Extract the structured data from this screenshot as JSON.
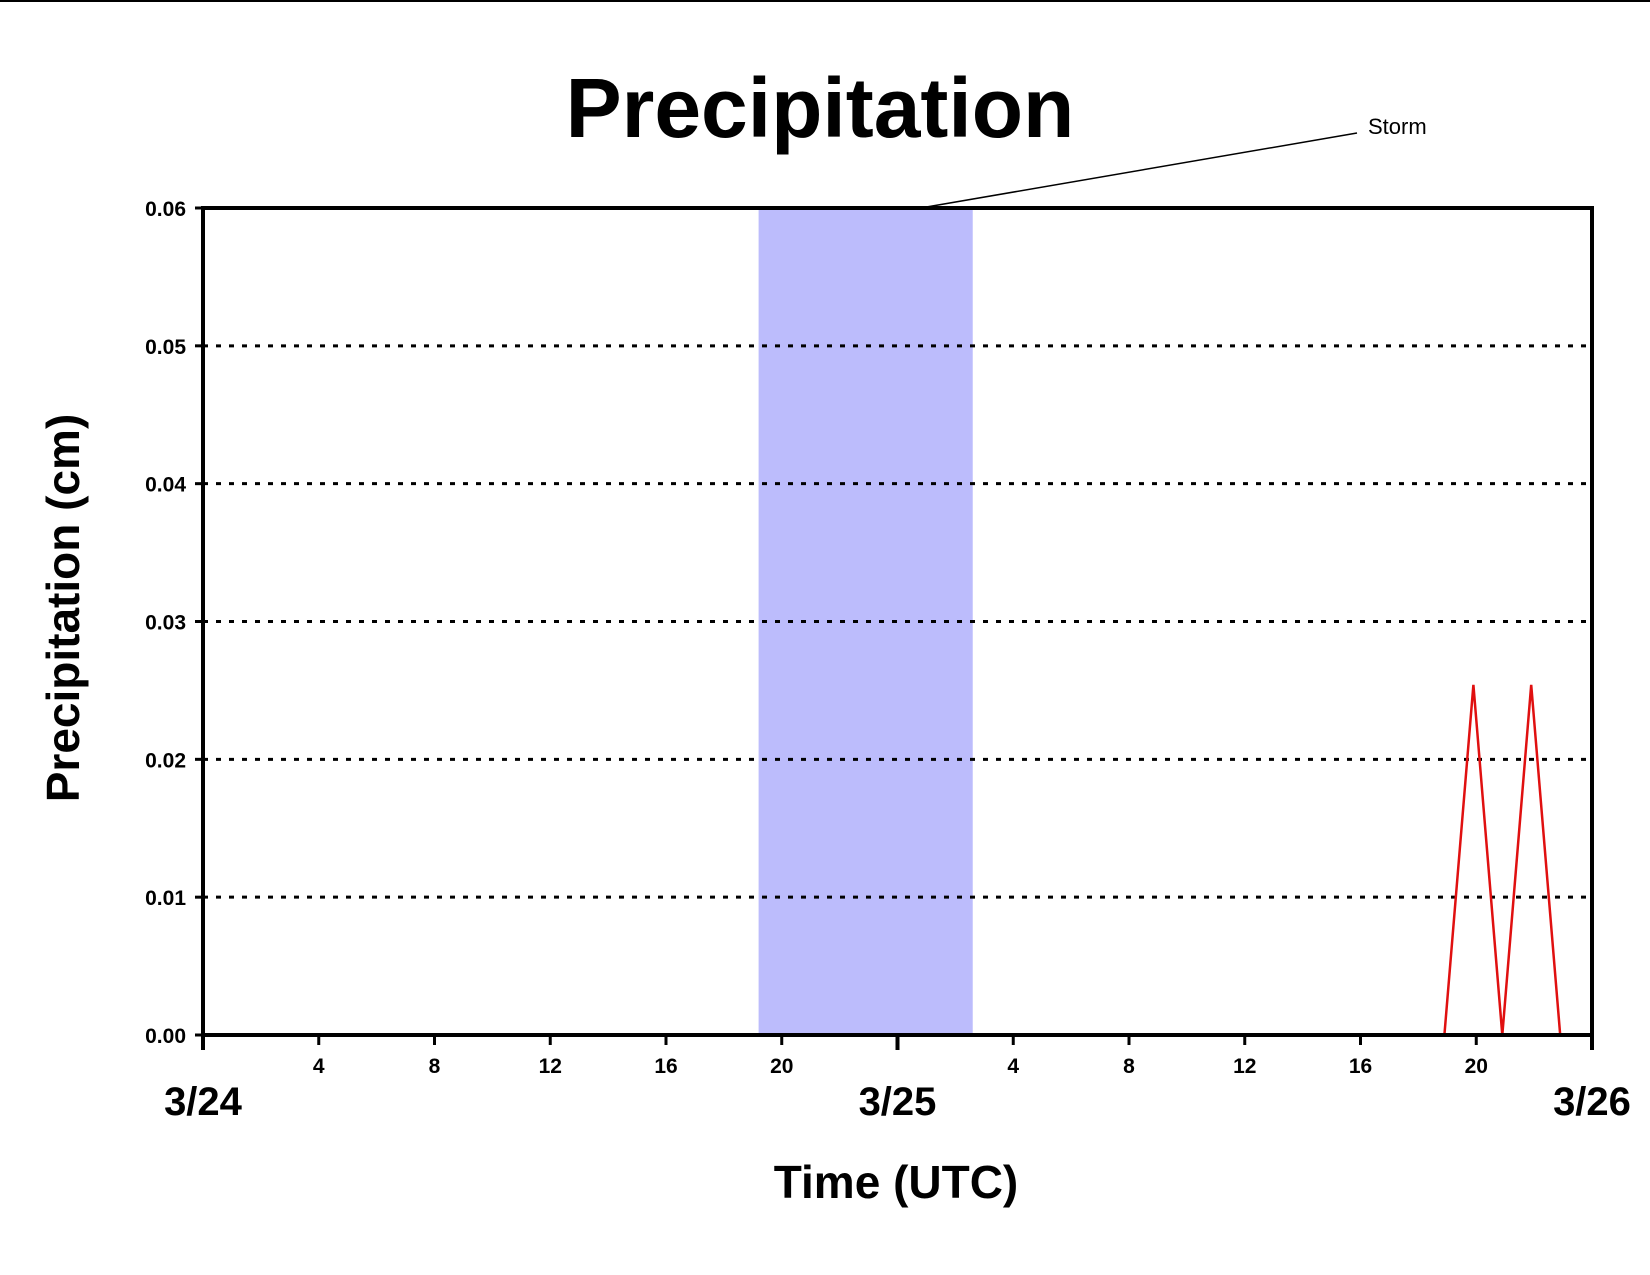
{
  "chart_data": {
    "type": "line",
    "title": "Precipitation",
    "xlabel": "Time (UTC)",
    "ylabel": "Precipitation (cm)",
    "xlim": [
      0,
      48
    ],
    "ylim": [
      0,
      0.06
    ],
    "y_ticks": [
      "0.00",
      "0.01",
      "0.02",
      "0.03",
      "0.04",
      "0.05",
      "0.06"
    ],
    "x_hour_ticks": [
      {
        "hour": 4,
        "label": "4"
      },
      {
        "hour": 8,
        "label": "8"
      },
      {
        "hour": 12,
        "label": "12"
      },
      {
        "hour": 16,
        "label": "16"
      },
      {
        "hour": 20,
        "label": "20"
      },
      {
        "hour": 28,
        "label": "4"
      },
      {
        "hour": 32,
        "label": "8"
      },
      {
        "hour": 36,
        "label": "12"
      },
      {
        "hour": 40,
        "label": "16"
      },
      {
        "hour": 44,
        "label": "20"
      }
    ],
    "x_day_labels": [
      {
        "hour": 0,
        "label": "3/24"
      },
      {
        "hour": 24,
        "label": "3/25"
      },
      {
        "hour": 48,
        "label": "3/26"
      }
    ],
    "grid": "horizontal dotted",
    "shaded_region": {
      "start_hour": 19.2,
      "end_hour": 26.6,
      "color": "#bcbcfc"
    },
    "annotations": [
      {
        "text": "Storm",
        "target_hour": 24.8,
        "target_y": 0.06
      }
    ],
    "series": [
      {
        "color": "#e01010",
        "x": [
          0,
          42.9,
          43.9,
          44.9,
          45.9,
          46.9
        ],
        "y": [
          0,
          0,
          0.0254,
          0,
          0.0254,
          0
        ]
      }
    ]
  }
}
